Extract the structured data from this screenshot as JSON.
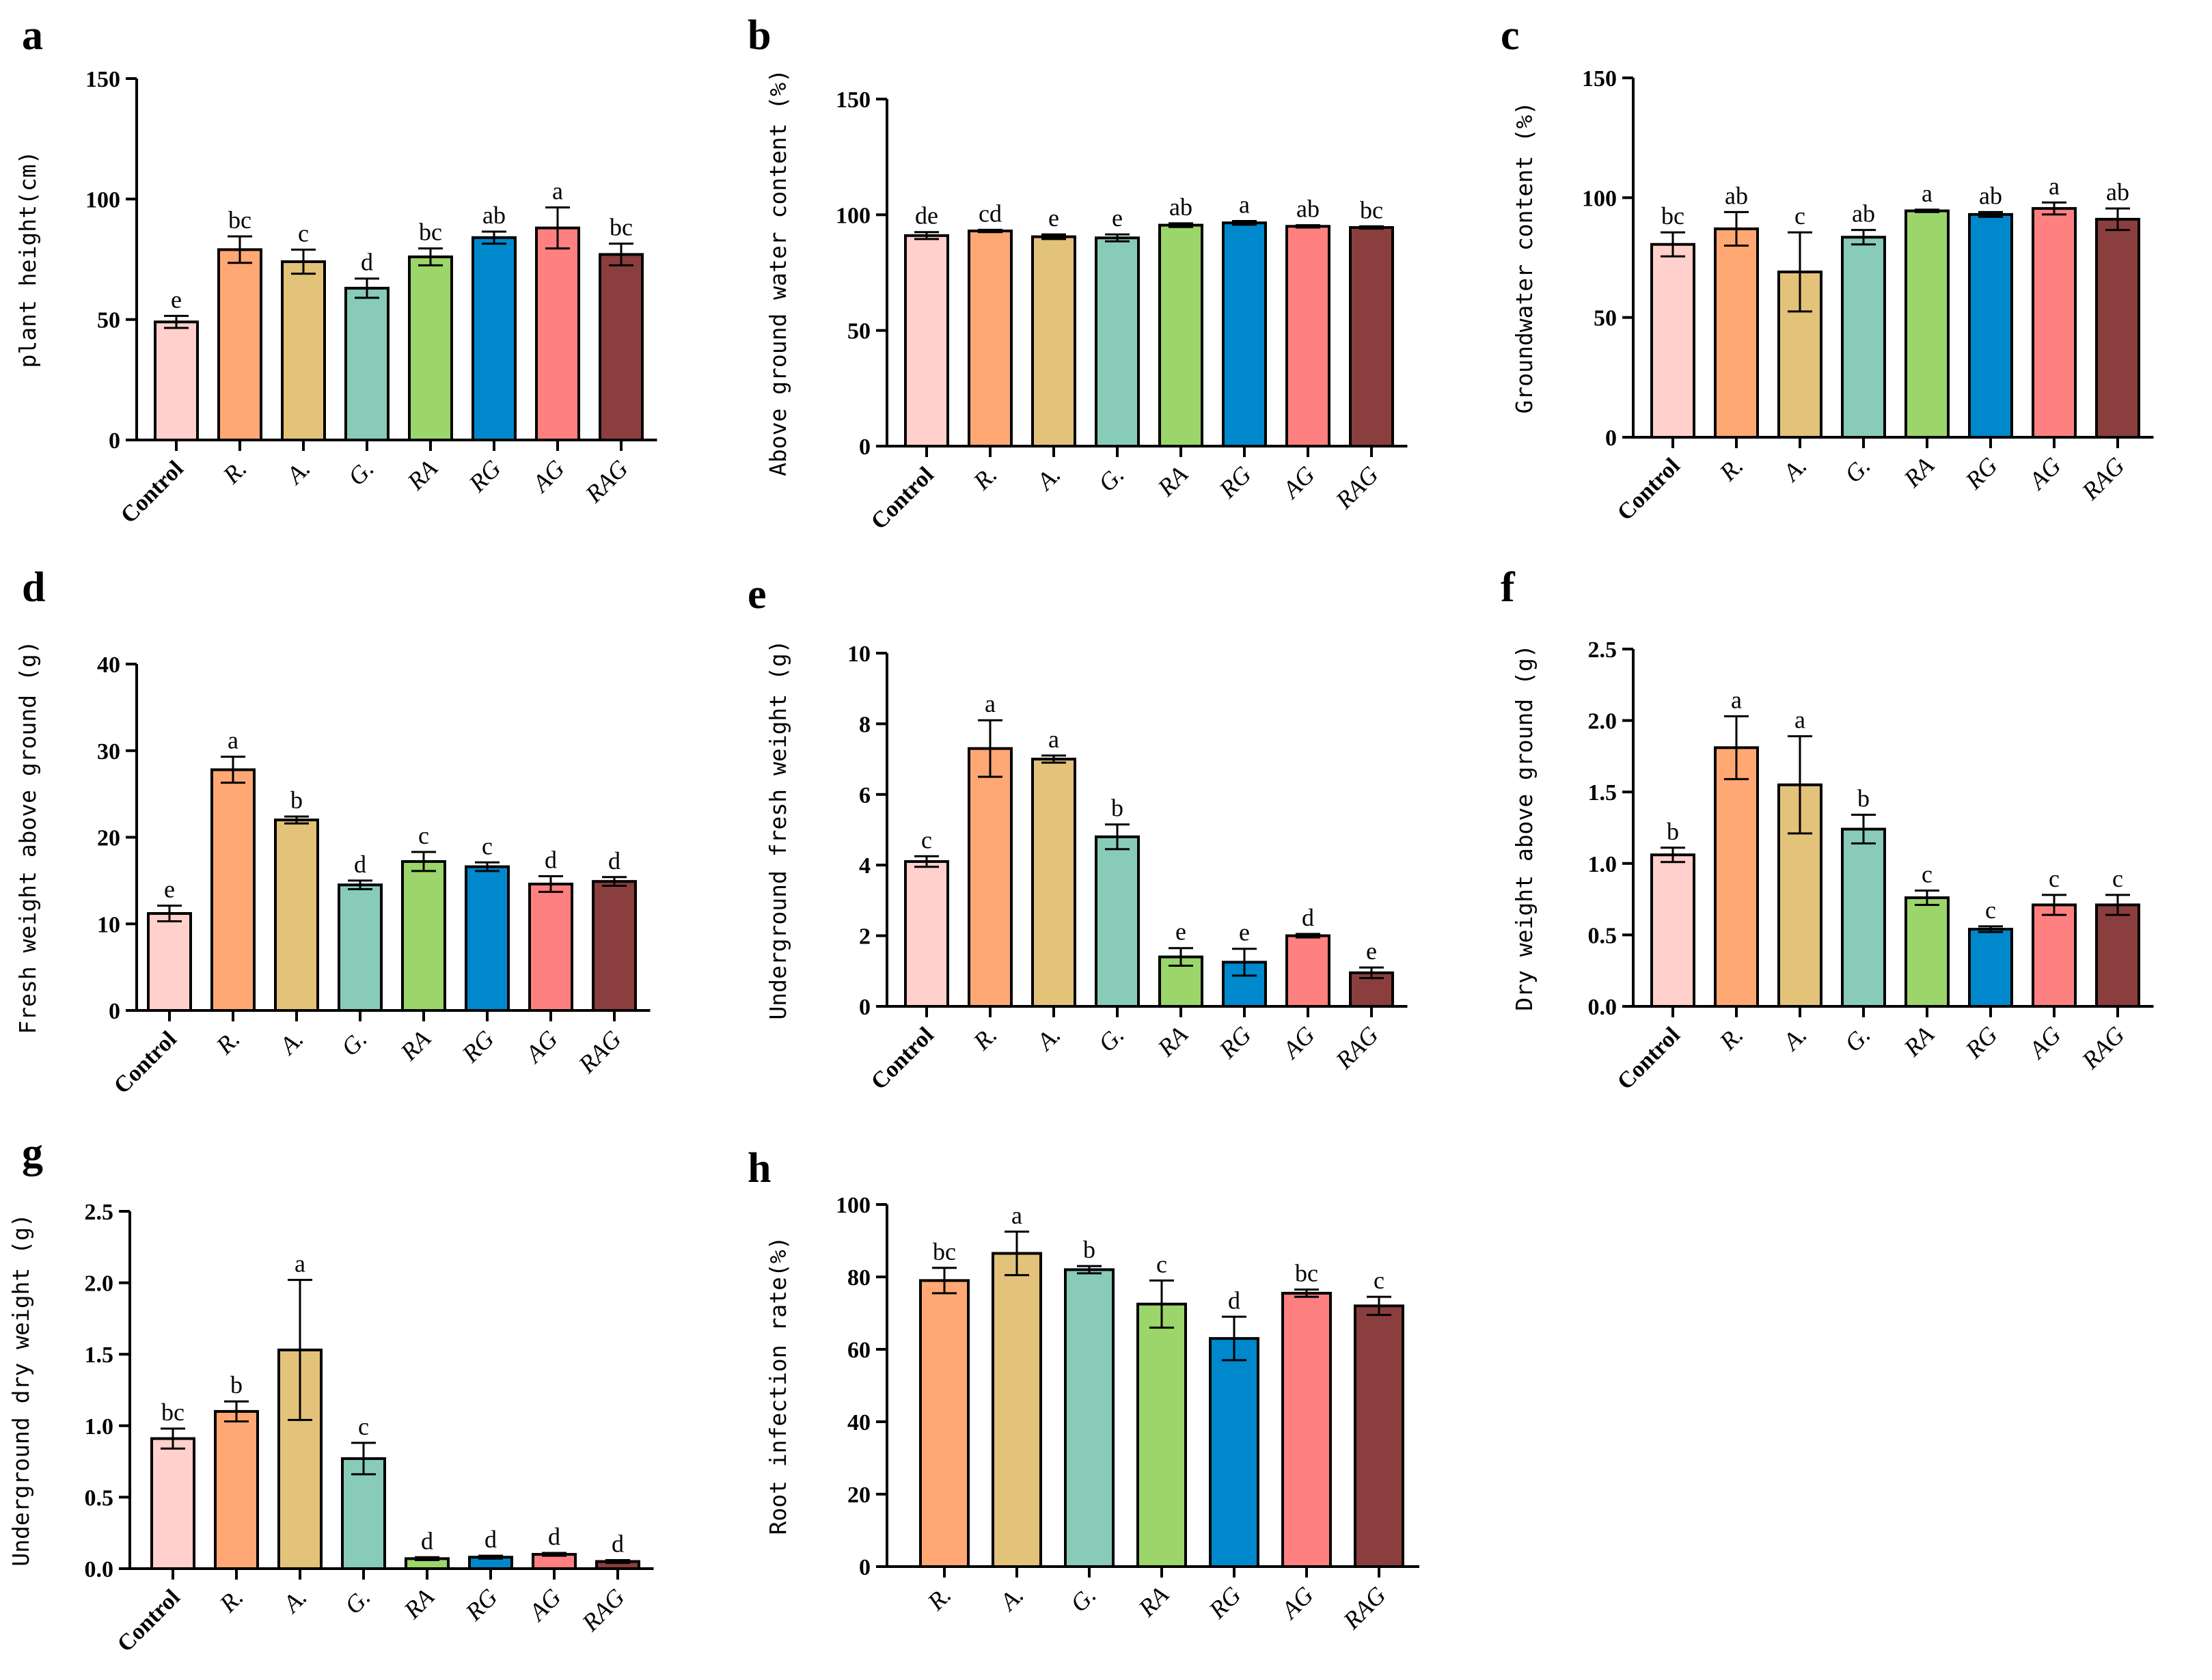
{
  "colors": {
    "control": "#FFD0CC",
    "R": "#FFA873",
    "A": "#E3C27A",
    "G": "#88CBB9",
    "RA": "#9CD56A",
    "RG": "#0088CC",
    "AG": "#FF8080",
    "RAG": "#8B3E3E"
  },
  "chart_data": [
    {
      "panel": "a",
      "type": "bar",
      "ylabel": "plant height(cm)",
      "ylim": [
        0,
        150
      ],
      "yticks": [
        "0",
        "50",
        "100",
        "150"
      ],
      "categories": [
        "Control",
        "R.",
        "A.",
        "G.",
        "RA",
        "RG",
        "AG",
        "RAG"
      ],
      "values": [
        49,
        79,
        74,
        63,
        76,
        84,
        88,
        77
      ],
      "errors": [
        2.5,
        5.5,
        5,
        4,
        3.5,
        2.5,
        8.5,
        4.5
      ],
      "letters": [
        "e",
        "bc",
        "c",
        "d",
        "bc",
        "ab",
        "a",
        "bc"
      ]
    },
    {
      "panel": "b",
      "type": "bar",
      "ylabel": "Above ground water content (%)",
      "ylim": [
        0,
        150
      ],
      "yticks": [
        "0",
        "50",
        "100",
        "150"
      ],
      "categories": [
        "Control",
        "R.",
        "A.",
        "G.",
        "RA",
        "RG",
        "AG",
        "RAG"
      ],
      "values": [
        91,
        93,
        90.5,
        90,
        95.5,
        96.5,
        95,
        94.5
      ],
      "errors": [
        1.5,
        0.5,
        1,
        1.5,
        0.8,
        0.8,
        0.5,
        0.5
      ],
      "letters": [
        "de",
        "cd",
        "e",
        "e",
        "ab",
        "a",
        "ab",
        "bc"
      ]
    },
    {
      "panel": "c",
      "type": "bar",
      "ylabel": "Groundwater content (%)",
      "ylim": [
        0,
        150
      ],
      "yticks": [
        "0",
        "50",
        "100",
        "150"
      ],
      "categories": [
        "Control",
        "R.",
        "A.",
        "G.",
        "RA",
        "RG",
        "AG",
        "RAG"
      ],
      "values": [
        80.5,
        87,
        69,
        83.5,
        94.5,
        93,
        95.5,
        91
      ],
      "errors": [
        5,
        7,
        16.5,
        3,
        0.5,
        1,
        2.5,
        4.5
      ],
      "letters": [
        "bc",
        "ab",
        "c",
        "ab",
        "a",
        "ab",
        "a",
        "ab"
      ]
    },
    {
      "panel": "d",
      "type": "bar",
      "ylabel": "Fresh weight above ground (g)",
      "ylim": [
        0,
        40
      ],
      "yticks": [
        "0",
        "10",
        "20",
        "30",
        "40"
      ],
      "categories": [
        "Control",
        "R.",
        "A.",
        "G.",
        "RA",
        "RG",
        "AG",
        "RAG"
      ],
      "values": [
        11.2,
        27.8,
        22.0,
        14.5,
        17.2,
        16.6,
        14.6,
        14.9
      ],
      "errors": [
        0.9,
        1.5,
        0.4,
        0.5,
        1.1,
        0.5,
        0.9,
        0.5
      ],
      "letters": [
        "e",
        "a",
        "b",
        "d",
        "c",
        "c",
        "d",
        "d"
      ]
    },
    {
      "panel": "e",
      "type": "bar",
      "ylabel": "Underground fresh weight (g)",
      "ylim": [
        0,
        10
      ],
      "yticks": [
        "0",
        "2",
        "4",
        "6",
        "8",
        "10"
      ],
      "categories": [
        "Control",
        "R.",
        "A.",
        "G.",
        "RA",
        "RG",
        "AG",
        "RAG"
      ],
      "values": [
        4.1,
        7.3,
        7.0,
        4.8,
        1.4,
        1.25,
        2.0,
        0.95
      ],
      "errors": [
        0.15,
        0.8,
        0.1,
        0.35,
        0.25,
        0.38,
        0.05,
        0.15
      ],
      "letters": [
        "c",
        "a",
        "a",
        "b",
        "e",
        "e",
        "d",
        "e"
      ]
    },
    {
      "panel": "f",
      "type": "bar",
      "ylabel": "Dry weight above ground (g)",
      "ylim": [
        0,
        2.5
      ],
      "yticks": [
        "0.0",
        "0.5",
        "1.0",
        "1.5",
        "2.0",
        "2.5"
      ],
      "categories": [
        "Control",
        "R.",
        "A.",
        "G.",
        "RA",
        "RG",
        "AG",
        "RAG"
      ],
      "values": [
        1.06,
        1.81,
        1.55,
        1.24,
        0.76,
        0.54,
        0.71,
        0.71
      ],
      "errors": [
        0.05,
        0.22,
        0.34,
        0.1,
        0.05,
        0.02,
        0.07,
        0.07
      ],
      "letters": [
        "b",
        "a",
        "a",
        "b",
        "c",
        "c",
        "c",
        "c"
      ]
    },
    {
      "panel": "g",
      "type": "bar",
      "ylabel": "Underground dry weight (g)",
      "ylim": [
        0,
        2.5
      ],
      "yticks": [
        "0.0",
        "0.5",
        "1.0",
        "1.5",
        "2.0",
        "2.5"
      ],
      "categories": [
        "Control",
        "R.",
        "A.",
        "G.",
        "RA",
        "RG",
        "AG",
        "RAG"
      ],
      "values": [
        0.91,
        1.1,
        1.53,
        0.77,
        0.07,
        0.08,
        0.1,
        0.05
      ],
      "errors": [
        0.07,
        0.07,
        0.49,
        0.11,
        0.01,
        0.01,
        0.01,
        0.01
      ],
      "letters": [
        "bc",
        "b",
        "a",
        "c",
        "d",
        "d",
        "d",
        "d"
      ]
    },
    {
      "panel": "h",
      "type": "bar",
      "ylabel": "Root infection rate(%)",
      "ylim": [
        0,
        100
      ],
      "yticks": [
        "0",
        "20",
        "40",
        "60",
        "80",
        "100"
      ],
      "categories": [
        "R.",
        "A.",
        "G.",
        "RA",
        "RG",
        "AG",
        "RAG"
      ],
      "values": [
        79,
        86.5,
        82,
        72.5,
        63,
        75.5,
        72
      ],
      "errors": [
        3.5,
        6,
        1,
        6.5,
        6,
        1,
        2.5
      ],
      "letters": [
        "bc",
        "a",
        "b",
        "c",
        "d",
        "bc",
        "c"
      ]
    }
  ]
}
